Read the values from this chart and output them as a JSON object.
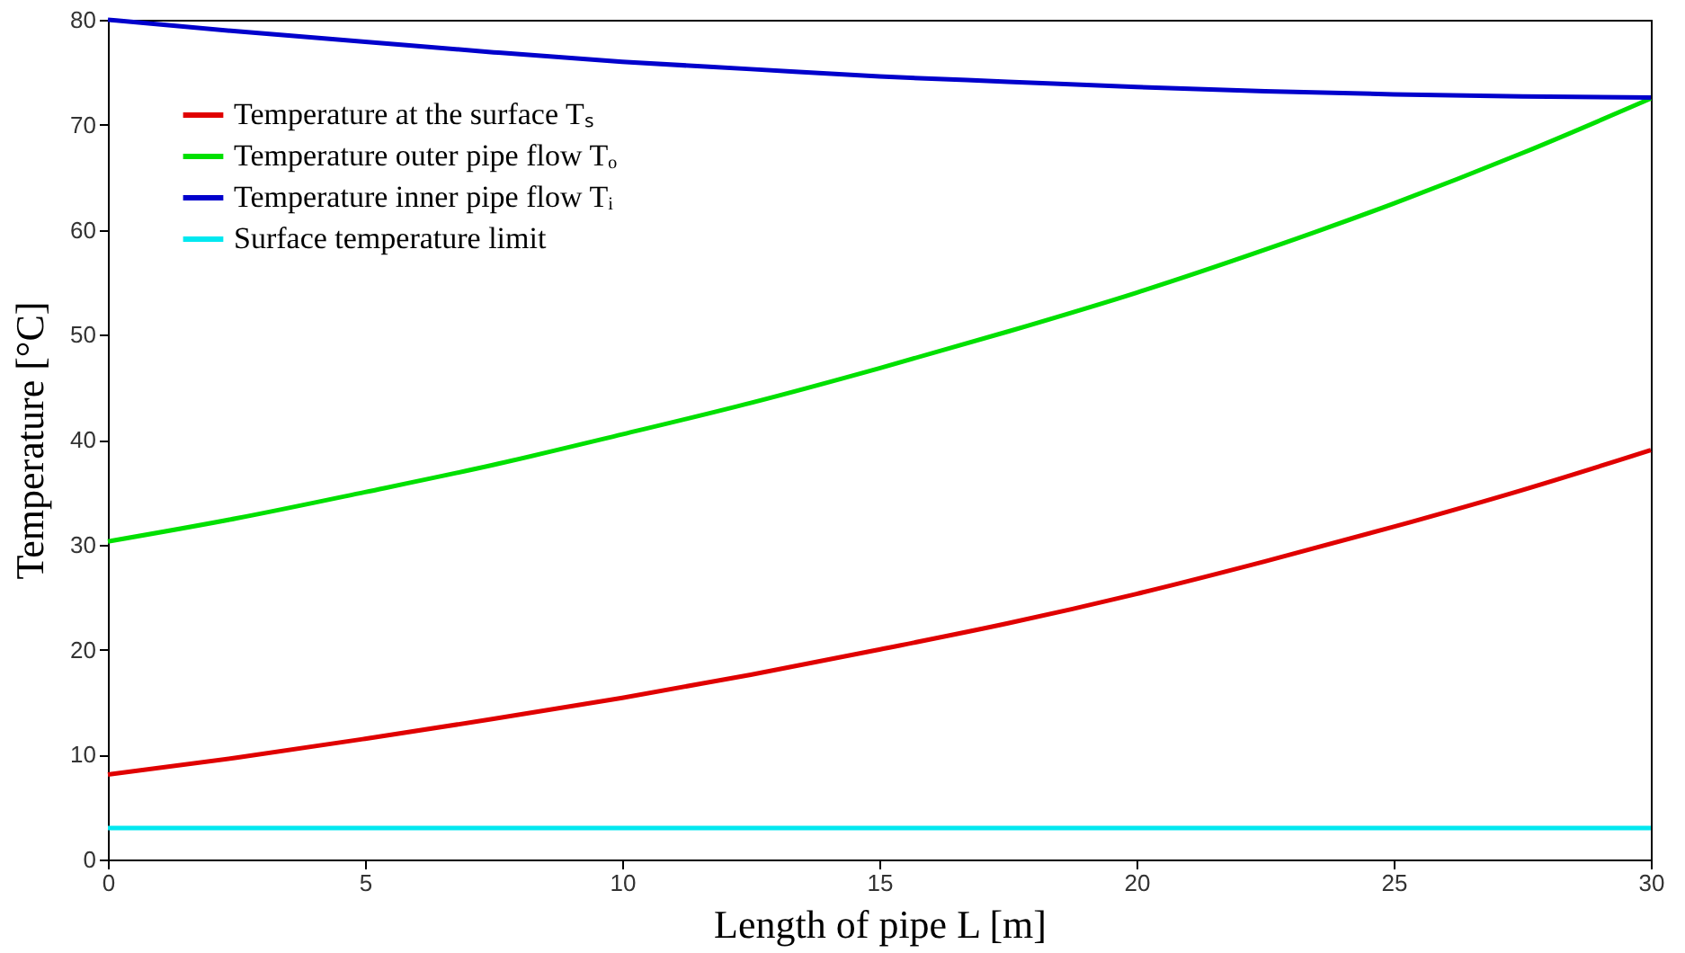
{
  "chart_data": {
    "type": "line",
    "xlabel": "Length of pipe L [m]",
    "ylabel": "Temperature [°C]",
    "x": [
      0,
      2.5,
      5,
      7.5,
      10,
      12.5,
      15,
      17.5,
      20,
      22.5,
      25,
      27.5,
      30
    ],
    "series": [
      {
        "name": "Temperature at the surface Tₛ",
        "color": "#e00000",
        "values": [
          8.1,
          9.7,
          11.5,
          13.4,
          15.4,
          17.6,
          20,
          22.5,
          25.3,
          28.4,
          31.7,
          35.2,
          39
        ]
      },
      {
        "name": "Temperature outer pipe flow Tₒ",
        "color": "#00e000",
        "values": [
          30.3,
          32.5,
          35,
          37.6,
          40.5,
          43.5,
          46.8,
          50.3,
          54,
          58.1,
          62.5,
          67.3,
          72.5
        ]
      },
      {
        "name": "Temperature inner pipe flow Tᵢ",
        "color": "#0000cc",
        "values": [
          80,
          78.9,
          77.9,
          76.9,
          76,
          75.3,
          74.6,
          74.1,
          73.6,
          73.2,
          72.9,
          72.7,
          72.6
        ]
      },
      {
        "name": "Surface temperature limit",
        "color": "#00e8f0",
        "values": [
          3,
          3,
          3,
          3,
          3,
          3,
          3,
          3,
          3,
          3,
          3,
          3,
          3
        ]
      }
    ],
    "xlim": [
      0,
      30
    ],
    "xticks": [
      0,
      5,
      10,
      15,
      20,
      25,
      30
    ],
    "ylim": [
      0,
      80
    ],
    "yticks": [
      0,
      10,
      20,
      30,
      40,
      50,
      60,
      70,
      80
    ],
    "grid": false,
    "legend": "top left",
    "marker": "none",
    "line_style": "solid"
  }
}
